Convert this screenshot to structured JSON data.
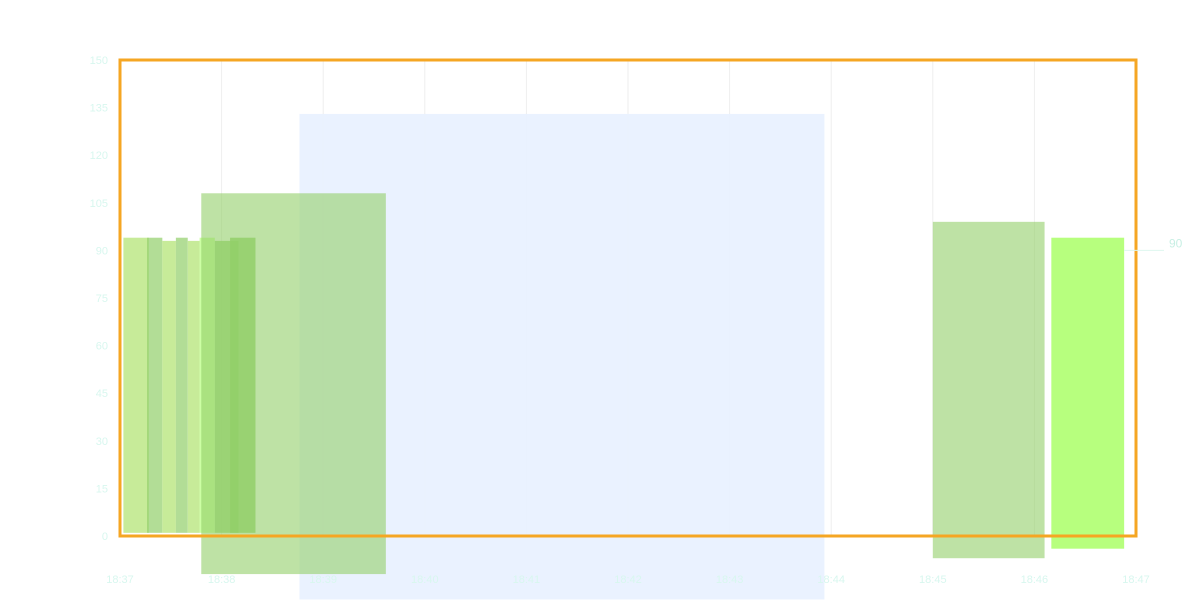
{
  "chart_data": {
    "type": "bar",
    "title": "",
    "xlabel": "",
    "ylabel": "",
    "grid": true,
    "legend_position": "",
    "x_axis": {
      "ticks": [
        "18:37",
        "18:38",
        "18:39",
        "18:40",
        "18:41",
        "18:42",
        "18:43",
        "18:44",
        "18:45",
        "18:46",
        "18:47"
      ]
    },
    "y_axis": {
      "ticks": [
        0,
        15,
        30,
        45,
        60,
        75,
        90,
        105,
        120,
        135,
        150
      ],
      "range": [
        0,
        150
      ]
    },
    "colors": {
      "frame": "#f5a623",
      "grid": "#eeeeee",
      "shaded_range": "#e8f1ff",
      "tick_text": "#d8f7ef",
      "label_text": "#c8efe4",
      "bar_dark": "#92cf69",
      "bar_light": "#c4ea93",
      "bar_bright": "#b7ff7e"
    },
    "shaded_ranges": [
      {
        "x0": "18:38:46",
        "x1": "18:43:56",
        "y0": -20,
        "y1": 133
      }
    ],
    "series": [
      {
        "values": [
          {
            "x0": "18:37:02",
            "x1": "18:37:17",
            "y0": 1,
            "y1": 94,
            "color": "#c4ea93",
            "opacity": 0.95
          },
          {
            "x0": "18:37:16",
            "x1": "18:37:25",
            "y0": 1,
            "y1": 94,
            "color": "#92cf69",
            "opacity": 0.7
          },
          {
            "x0": "18:37:25",
            "x1": "18:37:33",
            "y0": 1,
            "y1": 93,
            "color": "#c4ea93",
            "opacity": 0.95
          },
          {
            "x0": "18:37:33",
            "x1": "18:37:40",
            "y0": 1,
            "y1": 94,
            "color": "#92cf69",
            "opacity": 0.7
          },
          {
            "x0": "18:37:40",
            "x1": "18:37:47",
            "y0": 1,
            "y1": 93,
            "color": "#c4ea93",
            "opacity": 0.95
          },
          {
            "x0": "18:37:47",
            "x1": "18:37:56",
            "y0": 1,
            "y1": 94,
            "color": "#b7ff7e",
            "opacity": 0.7
          },
          {
            "x0": "18:37:56",
            "x1": "18:38:10",
            "y0": 1,
            "y1": 93,
            "color": "#92cf69",
            "opacity": 0.8
          },
          {
            "x0": "18:38:05",
            "x1": "18:38:20",
            "y0": 1,
            "y1": 94,
            "color": "#92cf69",
            "opacity": 0.85
          },
          {
            "x0": "18:37:48",
            "x1": "18:39:37",
            "y0": -12,
            "y1": 108,
            "color": "#92cf69",
            "opacity": 0.6
          },
          {
            "x0": "18:45:00",
            "x1": "18:46:06",
            "y0": -7,
            "y1": 99,
            "color": "#92cf69",
            "opacity": 0.6
          },
          {
            "x0": "18:46:10",
            "x1": "18:46:53",
            "y0": -4,
            "y1": 94,
            "color": "#b7ff7e",
            "opacity": 1.0
          }
        ]
      }
    ],
    "annotations": [
      {
        "text": "90",
        "x": "18:47:00",
        "y": 90
      }
    ]
  }
}
